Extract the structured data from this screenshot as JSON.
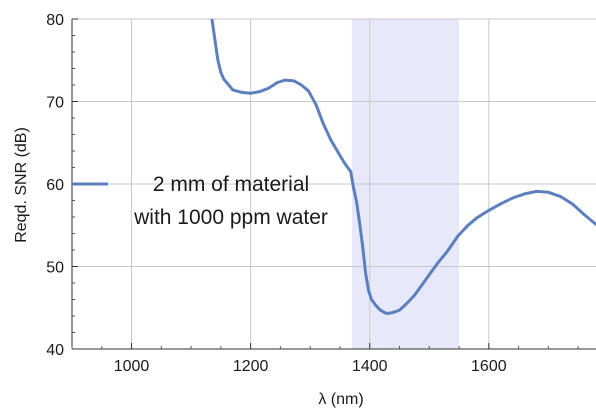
{
  "chart_data": {
    "type": "line",
    "xlabel": "λ (nm)",
    "ylabel": "Reqd. SNR (dB)",
    "xlim": [
      900,
      1780
    ],
    "ylim": [
      40,
      80
    ],
    "x_ticks": [
      1000,
      1200,
      1400,
      1600
    ],
    "y_ticks": [
      40,
      50,
      60,
      70,
      80
    ],
    "grid": true,
    "highlight_band": {
      "x_range": [
        1370,
        1550
      ],
      "color": "#e8e8fb"
    },
    "legend": {
      "placement": "center-left",
      "lines": [
        "2 mm of material",
        "with 1000 ppm water"
      ]
    },
    "series": [
      {
        "color": "#5b7fbf",
        "x": [
          1135,
          1140,
          1145,
          1150,
          1155,
          1170,
          1185,
          1200,
          1215,
          1230,
          1245,
          1258,
          1273,
          1285,
          1297,
          1310,
          1322,
          1335,
          1348,
          1358,
          1368,
          1373,
          1378,
          1383,
          1388,
          1393,
          1398,
          1403,
          1410,
          1418,
          1428,
          1438,
          1450,
          1462,
          1475,
          1488,
          1500,
          1515,
          1530,
          1548,
          1565,
          1580,
          1600,
          1620,
          1640,
          1660,
          1680,
          1700,
          1720,
          1740,
          1760,
          1780
        ],
        "y": [
          80,
          77.5,
          75,
          73.5,
          72.7,
          71.4,
          71.1,
          71.0,
          71.2,
          71.6,
          72.3,
          72.6,
          72.5,
          72.0,
          71.3,
          69.6,
          67.3,
          65.3,
          63.7,
          62.5,
          61.5,
          59.5,
          57.8,
          55.3,
          52.5,
          49.2,
          47.1,
          46.0,
          45.3,
          44.7,
          44.3,
          44.4,
          44.7,
          45.5,
          46.5,
          47.8,
          49.0,
          50.5,
          51.8,
          53.7,
          55.0,
          55.9,
          56.8,
          57.6,
          58.3,
          58.8,
          59.1,
          59.0,
          58.5,
          57.6,
          56.3,
          55.1
        ]
      }
    ]
  }
}
